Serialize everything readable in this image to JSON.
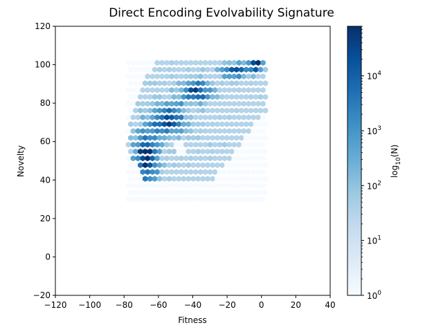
{
  "chart_data": {
    "type": "heatmap",
    "subtype": "hexbin",
    "title": "Direct Encoding Evolvability Signature",
    "xlabel": "Fitness",
    "ylabel": "Novelty",
    "xlim": [
      -120,
      40
    ],
    "ylim": [
      -20,
      120
    ],
    "xticks": [
      "−120",
      "−100",
      "−80",
      "−60",
      "−40",
      "−20",
      "0",
      "20",
      "40"
    ],
    "yticks": [
      "−20",
      "0",
      "20",
      "40",
      "60",
      "80",
      "100",
      "120"
    ],
    "grid": false,
    "colormap": "Blues",
    "colorbar": {
      "label": "log10(N)",
      "label_main": "log",
      "label_sub": "10",
      "label_tail": "(N)",
      "scale": "log",
      "range": [
        1,
        80000
      ],
      "ticks": [
        {
          "base": "10",
          "exp": "0"
        },
        {
          "base": "10",
          "exp": "1"
        },
        {
          "base": "10",
          "exp": "2"
        },
        {
          "base": "10",
          "exp": "3"
        },
        {
          "base": "10",
          "exp": "4"
        }
      ]
    },
    "hexbin_layout": {
      "col_spacing_fitness": 2.8,
      "row_spacing_novelty": 3.55,
      "x_start": -77.5,
      "y_start": 30.0,
      "columns": 29,
      "rows": 21
    },
    "density_description": [
      {
        "fitness": -65,
        "novelty": 55,
        "log10_count": 4.9
      },
      {
        "fitness": -55,
        "novelty": 70,
        "log10_count": 4.3
      },
      {
        "fitness": -40,
        "novelty": 85,
        "log10_count": 4.2
      },
      {
        "fitness": -20,
        "novelty": 95,
        "log10_count": 4.0
      },
      {
        "fitness": -3,
        "novelty": 100,
        "log10_count": 4.8
      }
    ]
  }
}
